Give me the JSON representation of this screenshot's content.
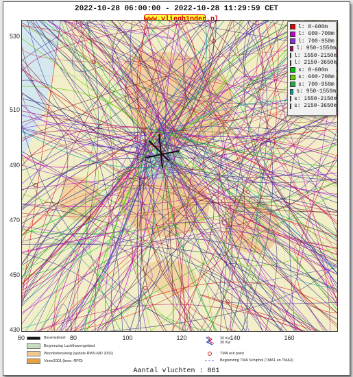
{
  "header": {
    "date_range": "2022-10-28 06:00:00 - 2022-10-28 11:29:59 CET",
    "brand": "www.vliegh1nder.nl"
  },
  "axes": {
    "y_ticks": [
      "530",
      "510",
      "490",
      "470",
      "450",
      "430"
    ],
    "x_ticks": [
      "60",
      "80",
      "100",
      "120",
      "140",
      "160"
    ]
  },
  "legend": {
    "items": [
      {
        "label": "l: 0-600m",
        "color": "#e00000"
      },
      {
        "label": "l: 600-700m",
        "color": "#c000c0"
      },
      {
        "label": "l: 700-950m",
        "color": "#8a2be2"
      },
      {
        "label": "l: 950-1550m",
        "color": "#b00060"
      },
      {
        "label": "l: 1550-2150m",
        "color": "#cc4444"
      },
      {
        "label": "l: 2150-3650m",
        "color": "#7a1a1a"
      },
      {
        "label": "s: 0-600m",
        "color": "#00c000"
      },
      {
        "label": "s: 600-700m",
        "color": "#66cc00"
      },
      {
        "label": "s: 700-950m",
        "color": "#22aa44"
      },
      {
        "label": "s: 950-1550m",
        "color": "#00a0a0"
      },
      {
        "label": "s: 1550-2150m",
        "color": "#3a3aa0"
      },
      {
        "label": "s: 2150-3650m",
        "color": "#2a2a80"
      }
    ]
  },
  "map_legend": {
    "items": [
      {
        "label": "Banenstelsel",
        "color": "#111111"
      },
      {
        "label": "Begrenzing Luchthavengebied",
        "color": "#c8dcc0"
      },
      {
        "label": "Woonbebouwing (update RWS-MD 2001)",
        "color": "#f0c890"
      },
      {
        "label": "Vinex2001 (bron: RPD)",
        "color": "#e8a040"
      }
    ],
    "symbols": [
      {
        "label": "20 Kw",
        "color": "#2244cc"
      },
      {
        "label": "35 Kw",
        "color": "#cc2222"
      },
      {
        "label": "TMA exit point",
        "color": "#cc2222"
      },
      {
        "label": "Begrenzing TMA Schiphol  (TMA1 en TMA3)",
        "color": "#5577cc"
      }
    ]
  },
  "footer": {
    "flight_count": "Aantal vluchten : 861"
  },
  "colors": {
    "water": "#d4e8ee",
    "land": "#f2efc8",
    "urban": "#f0c890",
    "airport": "#c8dcc0"
  }
}
